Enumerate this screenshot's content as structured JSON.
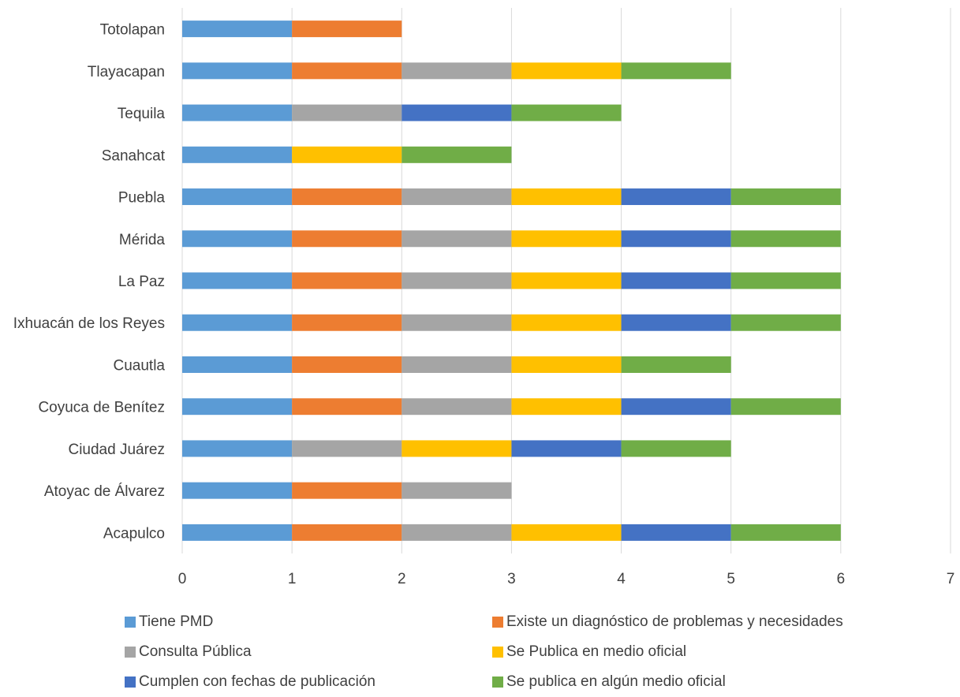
{
  "chart_data": {
    "type": "bar",
    "orientation": "horizontal",
    "stacked": true,
    "categories": [
      "Acapulco",
      "Atoyac de Álvarez",
      "Ciudad Juárez",
      "Coyuca de Benítez",
      "Cuautla",
      "Ixhuacán de los Reyes",
      "La Paz",
      "Mérida",
      "Puebla",
      "Sanahcat",
      "Tequila",
      "Tlayacapan",
      "Totolapan"
    ],
    "series": [
      {
        "name": "Tiene PMD",
        "color": "#5B9BD5",
        "values": [
          1,
          1,
          1,
          1,
          1,
          1,
          1,
          1,
          1,
          1,
          1,
          1,
          1
        ]
      },
      {
        "name": "Existe un diagnóstico de problemas y necesidades",
        "color": "#ED7D31",
        "values": [
          1,
          1,
          0,
          1,
          1,
          1,
          1,
          1,
          1,
          0,
          0,
          1,
          1
        ]
      },
      {
        "name": "Consulta Pública",
        "color": "#A5A5A5",
        "values": [
          1,
          1,
          1,
          1,
          1,
          1,
          1,
          1,
          1,
          0,
          1,
          1,
          0
        ]
      },
      {
        "name": "Se Publica en medio oficial",
        "color": "#FFC000",
        "values": [
          1,
          0,
          1,
          1,
          1,
          1,
          1,
          1,
          1,
          1,
          0,
          1,
          0
        ]
      },
      {
        "name": "Cumplen con fechas de publicación",
        "color": "#4472C4",
        "values": [
          1,
          0,
          1,
          1,
          0,
          1,
          1,
          1,
          1,
          0,
          1,
          0,
          0
        ]
      },
      {
        "name": "Se publica en algún medio oficial",
        "color": "#70AD47",
        "values": [
          1,
          0,
          1,
          1,
          1,
          1,
          1,
          1,
          1,
          1,
          1,
          1,
          0
        ]
      }
    ],
    "xlim": [
      0,
      7
    ],
    "xticks": [
      "0",
      "1",
      "2",
      "3",
      "4",
      "5",
      "6",
      "7"
    ],
    "grid": true,
    "legend_position": "bottom",
    "title": "",
    "xlabel": "",
    "ylabel": ""
  }
}
